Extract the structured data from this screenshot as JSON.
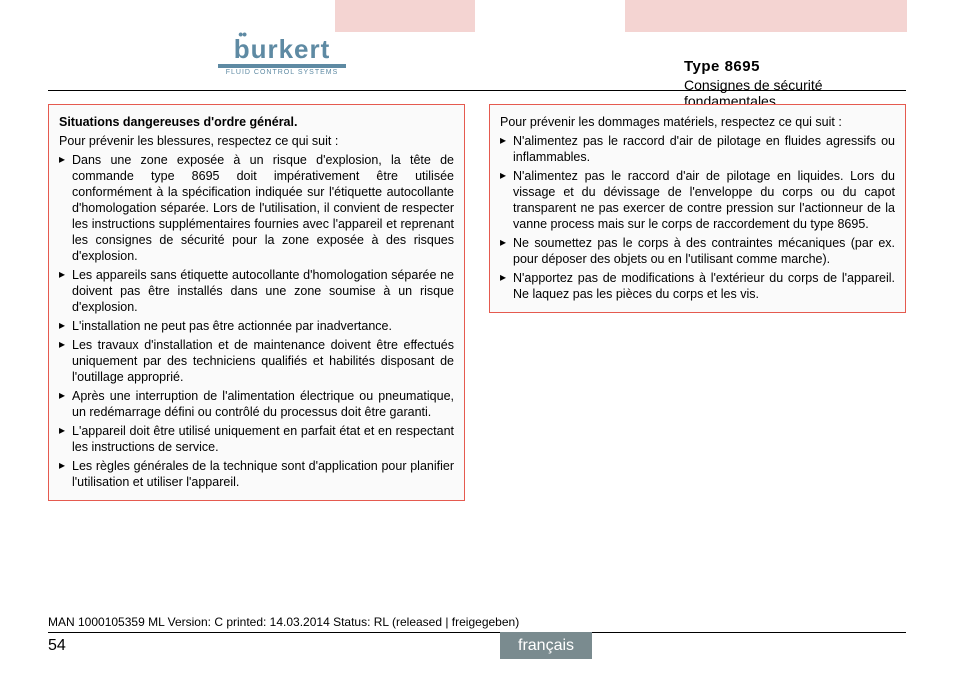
{
  "colors": {
    "accent_orange": "#e55a4f",
    "tab_pink": "#f4d4d2",
    "brand_blue": "#5e8aa3",
    "lang_grey": "#7a8b8f",
    "box_bg": "#fafafa"
  },
  "logo": {
    "word": "burkert",
    "tagline": "FLUID CONTROL SYSTEMS"
  },
  "header": {
    "type_label": "Type 8695",
    "subtitle": "Consignes de sécurité fondamentales"
  },
  "left_box": {
    "title": "Situations dangereuses d'ordre général.",
    "intro": "Pour prévenir les blessures, respectez ce qui suit :",
    "items": [
      "Dans une zone exposée à un risque d'explosion, la tête de commande type 8695 doit impérativement être utilisée conformément à la spécification indiquée sur l'étiquette autocollante d'homologation séparée. Lors de l'utilisation, il convient de respecter les instructions supplémentaires fournies avec l'appareil et reprenant les consignes de sécurité pour la zone exposée à des risques d'explosion.",
      "Les appareils sans étiquette autocollante d'homologation séparée ne doivent pas être installés dans une zone soumise à un risque d'explosion.",
      "L'installation ne peut pas être actionnée par inadvertance.",
      "Les travaux d'installation et de maintenance doivent être effectués uniquement par des techniciens qualifiés et habilités disposant de l'outillage approprié.",
      "Après une interruption de l'alimentation électrique ou pneumatique, un redémarrage défini ou contrôlé du processus doit être garanti.",
      "L'appareil doit être utilisé uniquement en parfait état et en respectant les instructions de service.",
      "Les règles générales de la technique sont d'application pour planifier l'utilisation et utiliser l'appareil."
    ]
  },
  "right_box": {
    "intro": "Pour prévenir les dommages matériels, respectez ce qui suit :",
    "items": [
      "N'alimentez pas le raccord d'air de pilotage en fluides agressifs ou inflammables.",
      "N'alimentez pas le raccord d'air de pilotage en liquides. Lors du vissage et du dévissage de l'enveloppe du corps ou du capot transparent ne pas exercer de contre pression sur l'actionneur de la vanne process mais sur le corps de raccordement du type 8695.",
      "Ne soumettez pas le corps à des contraintes mécaniques (par ex. pour déposer des objets ou en l'utilisant comme marche).",
      "N'apportez pas de modifications à l'extérieur du corps de l'appareil. Ne laquez pas les pièces du corps et les vis."
    ]
  },
  "footer": {
    "doc_meta": "MAN 1000105359 ML Version: C printed: 14.03.2014 Status: RL (released | freigegeben)",
    "page_number": "54",
    "language": "français"
  }
}
